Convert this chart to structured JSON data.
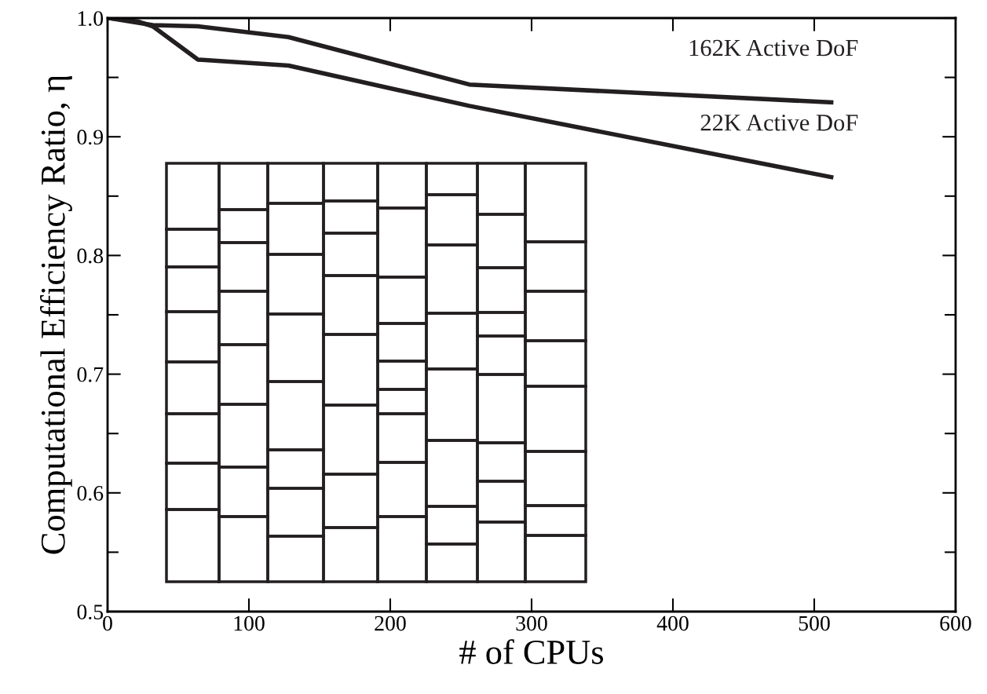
{
  "chart_data": {
    "type": "line",
    "xlabel": "# of CPUs",
    "ylabel": "Computational Efficiency Ratio, η",
    "series": [
      {
        "name": "162K Active DoF",
        "color": "#231f20",
        "x": [
          1,
          32,
          64,
          128,
          256,
          512
        ],
        "values": [
          1.0,
          0.994,
          0.993,
          0.984,
          0.944,
          0.929
        ]
      },
      {
        "name": "22K Active DoF",
        "color": "#231f20",
        "x": [
          1,
          22,
          32,
          64,
          128,
          256,
          512
        ],
        "values": [
          1.0,
          0.997,
          0.993,
          0.965,
          0.96,
          0.926,
          0.866
        ]
      }
    ],
    "xlim": [
      0,
      600
    ],
    "xticks": [
      0,
      100,
      200,
      300,
      400,
      500,
      600
    ],
    "ylim": [
      0.5,
      1.0
    ],
    "yticks": [
      0.5,
      {
        "value": 0.55,
        "label": null
      },
      0.6,
      {
        "value": 0.65,
        "label": null
      },
      0.7,
      {
        "value": 0.75,
        "label": null
      },
      0.8,
      {
        "value": 0.85,
        "label": null
      },
      0.9,
      {
        "value": 0.95,
        "label": null
      },
      {
        "value": 1.0,
        "label": "1.0"
      }
    ],
    "grid": false,
    "legend": false,
    "marker": "none",
    "line_style": "solid"
  }
}
